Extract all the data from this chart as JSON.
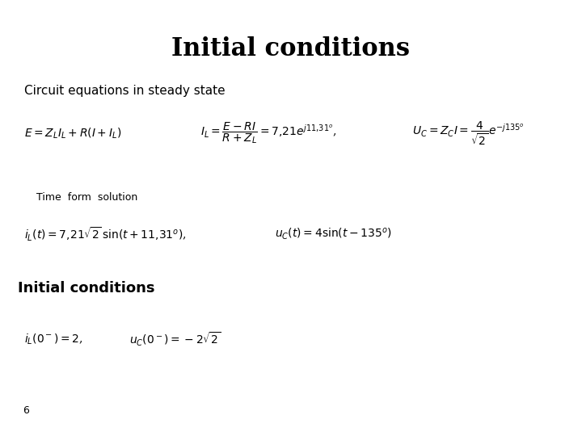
{
  "title": "Initial conditions",
  "title_fontsize": 22,
  "title_fontweight": "bold",
  "bg_color": "#ffffff",
  "text_color": "#000000",
  "section1_label": "Circuit equations in steady state",
  "section1_label_fontsize": 11,
  "eq1_fontsize": 10,
  "eq1": "$E = Z_L I_L + R\\left(I + I_L\\right)$",
  "eq2": "$I_L = \\dfrac{E - RI}{R + Z_L} = 7{,}21e^{j11{,}31^o}$,",
  "eq3": "$U_C = Z_C I = \\dfrac{4}{\\sqrt{2}}e^{-j135^o}$",
  "time_label": "Time  form  solution",
  "time_label_fontsize": 9,
  "eq4_fontsize": 10,
  "eq4a": "$i_L(t) = 7{,}21\\sqrt{2}\\,\\sin(t + 11{,}31^o)$,",
  "eq4b": "$u_C(t) = 4\\sin(t - 135^o)$",
  "section2_label": "Initial conditions",
  "section2_label_fontsize": 13,
  "section2_label_fontweight": "bold",
  "eq5_fontsize": 10,
  "eq5a": "$i_L(0^-) = 2$,",
  "eq5b": "$u_C(0^-) = -2\\sqrt{2}$",
  "page_num": "6",
  "page_num_fontsize": 9
}
